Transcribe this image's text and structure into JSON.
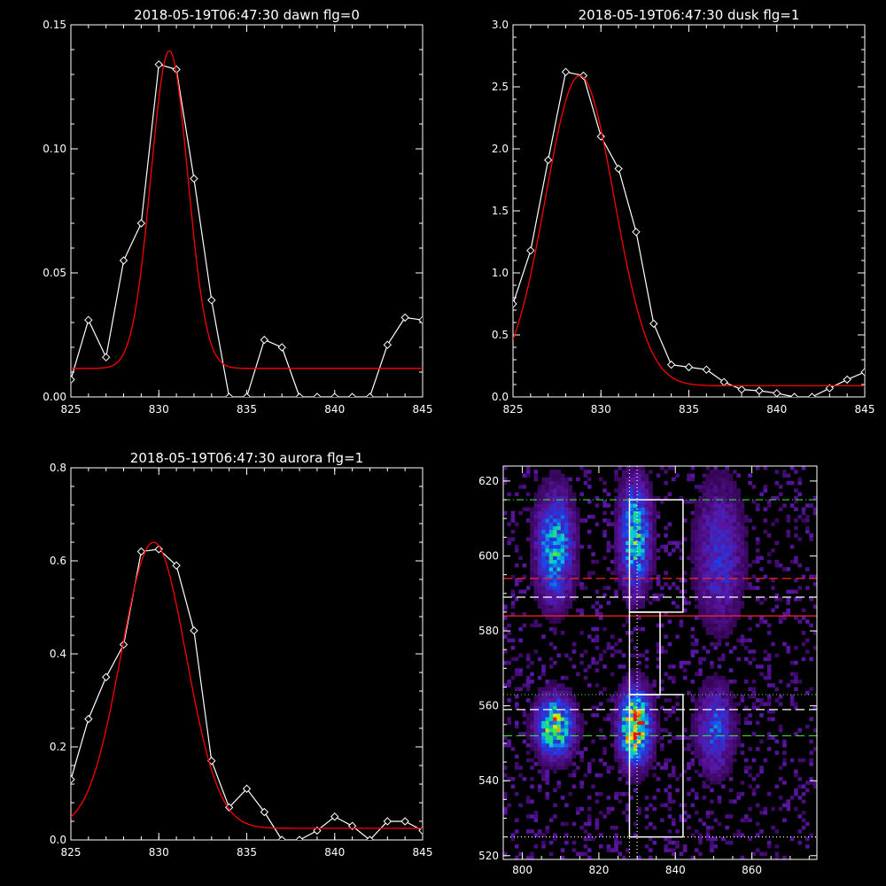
{
  "chart_data": [
    {
      "type": "line",
      "title": "2018-05-19T06:47:30 dawn flg=0",
      "xlim": [
        825,
        845
      ],
      "ylim": [
        0,
        0.15
      ],
      "xticks": [
        825,
        830,
        835,
        840,
        845
      ],
      "yticks": [
        0.0,
        0.05,
        0.1,
        0.15
      ],
      "ytick_labels": [
        "0.00",
        "0.05",
        "0.10",
        "0.15"
      ],
      "series": [
        {
          "color": "#ffffff",
          "marker": "diamond",
          "x": [
            825,
            826,
            827,
            828,
            829,
            830,
            831,
            832,
            833,
            834,
            835,
            836,
            837,
            838,
            839,
            840,
            841,
            842,
            843,
            844,
            845
          ],
          "y": [
            0.007,
            0.031,
            0.016,
            0.055,
            0.07,
            0.134,
            0.132,
            0.088,
            0.039,
            0.0,
            0.0,
            0.023,
            0.02,
            0.0,
            0.0,
            0.0,
            0.0,
            0.0,
            0.021,
            0.032,
            0.031
          ]
        },
        {
          "color": "#ff0000",
          "fit": "gaussian",
          "amp": 0.128,
          "center": 830.6,
          "sigma": 1.05,
          "offset": 0.0115
        }
      ]
    },
    {
      "type": "line",
      "title": "2018-05-19T06:47:30 dusk flg=1",
      "xlim": [
        825,
        845
      ],
      "ylim": [
        0,
        3.0
      ],
      "xticks": [
        825,
        830,
        835,
        840,
        845
      ],
      "yticks": [
        0.0,
        0.5,
        1.0,
        1.5,
        2.0,
        2.5,
        3.0
      ],
      "ytick_labels": [
        "0.0",
        "0.5",
        "1.0",
        "1.5",
        "2.0",
        "2.5",
        "3.0"
      ],
      "series": [
        {
          "color": "#ffffff",
          "marker": "diamond",
          "x": [
            825,
            826,
            827,
            828,
            829,
            830,
            831,
            832,
            833,
            834,
            835,
            836,
            837,
            838,
            839,
            840,
            841,
            842,
            843,
            844,
            845
          ],
          "y": [
            0.75,
            1.18,
            1.91,
            2.62,
            2.59,
            2.1,
            1.84,
            1.33,
            0.59,
            0.26,
            0.24,
            0.22,
            0.12,
            0.06,
            0.05,
            0.03,
            0.0,
            0.0,
            0.07,
            0.14,
            0.2
          ]
        },
        {
          "color": "#ff0000",
          "fit": "gaussian",
          "amp": 2.5,
          "center": 828.8,
          "sigma": 1.95,
          "offset": 0.09
        }
      ]
    },
    {
      "type": "line",
      "title": "2018-05-19T06:47:30 aurora flg=1",
      "xlim": [
        825,
        845
      ],
      "ylim": [
        0,
        0.8
      ],
      "xticks": [
        825,
        830,
        835,
        840,
        845
      ],
      "yticks": [
        0.0,
        0.2,
        0.4,
        0.6,
        0.8
      ],
      "ytick_labels": [
        "0.0",
        "0.2",
        "0.4",
        "0.6",
        "0.8"
      ],
      "series": [
        {
          "color": "#ffffff",
          "marker": "diamond",
          "x": [
            825,
            826,
            827,
            828,
            829,
            830,
            831,
            832,
            833,
            834,
            835,
            836,
            837,
            838,
            839,
            840,
            841,
            842,
            843,
            844,
            845
          ],
          "y": [
            0.13,
            0.26,
            0.35,
            0.42,
            0.62,
            0.625,
            0.59,
            0.45,
            0.17,
            0.07,
            0.11,
            0.06,
            0.0,
            0.0,
            0.02,
            0.05,
            0.03,
            0.0,
            0.04,
            0.04,
            0.02
          ]
        },
        {
          "color": "#ff0000",
          "fit": "gaussian",
          "amp": 0.615,
          "center": 829.7,
          "sigma": 1.85,
          "offset": 0.025
        }
      ]
    },
    {
      "type": "heatmap",
      "title": "",
      "xlim": [
        795,
        877
      ],
      "ylim": [
        519,
        624
      ],
      "xticks": [
        800,
        820,
        840,
        860
      ],
      "yticks": [
        520,
        540,
        560,
        580,
        600,
        620
      ],
      "clusters": [
        {
          "x": 808,
          "y": 602,
          "sx": 3,
          "sy": 9,
          "peak": 0.55
        },
        {
          "x": 829,
          "y": 605,
          "sx": 2.5,
          "sy": 9,
          "peak": 0.6
        },
        {
          "x": 829,
          "y": 554,
          "sx": 2.5,
          "sy": 6,
          "peak": 1.0
        },
        {
          "x": 808,
          "y": 554,
          "sx": 3,
          "sy": 5,
          "peak": 0.75
        },
        {
          "x": 850,
          "y": 553,
          "sx": 3,
          "sy": 7,
          "peak": 0.35
        },
        {
          "x": 851,
          "y": 600,
          "sx": 4,
          "sy": 12,
          "peak": 0.25
        }
      ],
      "boxes": [
        {
          "x0": 828,
          "x1": 842,
          "y0": 585,
          "y1": 615
        },
        {
          "x0": 828,
          "x1": 836,
          "y0": 563,
          "y1": 585
        },
        {
          "x0": 828,
          "x1": 842,
          "y0": 525,
          "y1": 563
        }
      ],
      "hlines": [
        {
          "y": 615,
          "color": "#33dd33",
          "style": "dashdot"
        },
        {
          "y": 594,
          "color": "#ff2222",
          "style": "dashed"
        },
        {
          "y": 589,
          "color": "#ffffff",
          "style": "dashed"
        },
        {
          "y": 584,
          "color": "#ff2222",
          "style": "solid"
        },
        {
          "y": 563,
          "color": "#33dd33",
          "style": "dotted"
        },
        {
          "y": 559,
          "color": "#ffffff",
          "style": "dashed"
        },
        {
          "y": 552,
          "color": "#33dd33",
          "style": "dashed"
        },
        {
          "y": 525,
          "color": "#ffffff",
          "style": "dotted"
        }
      ],
      "vlines": [
        {
          "x": 828,
          "color": "#ffffff",
          "style": "dotted"
        },
        {
          "x": 830,
          "color": "#ffffff",
          "style": "dotted"
        }
      ]
    }
  ]
}
